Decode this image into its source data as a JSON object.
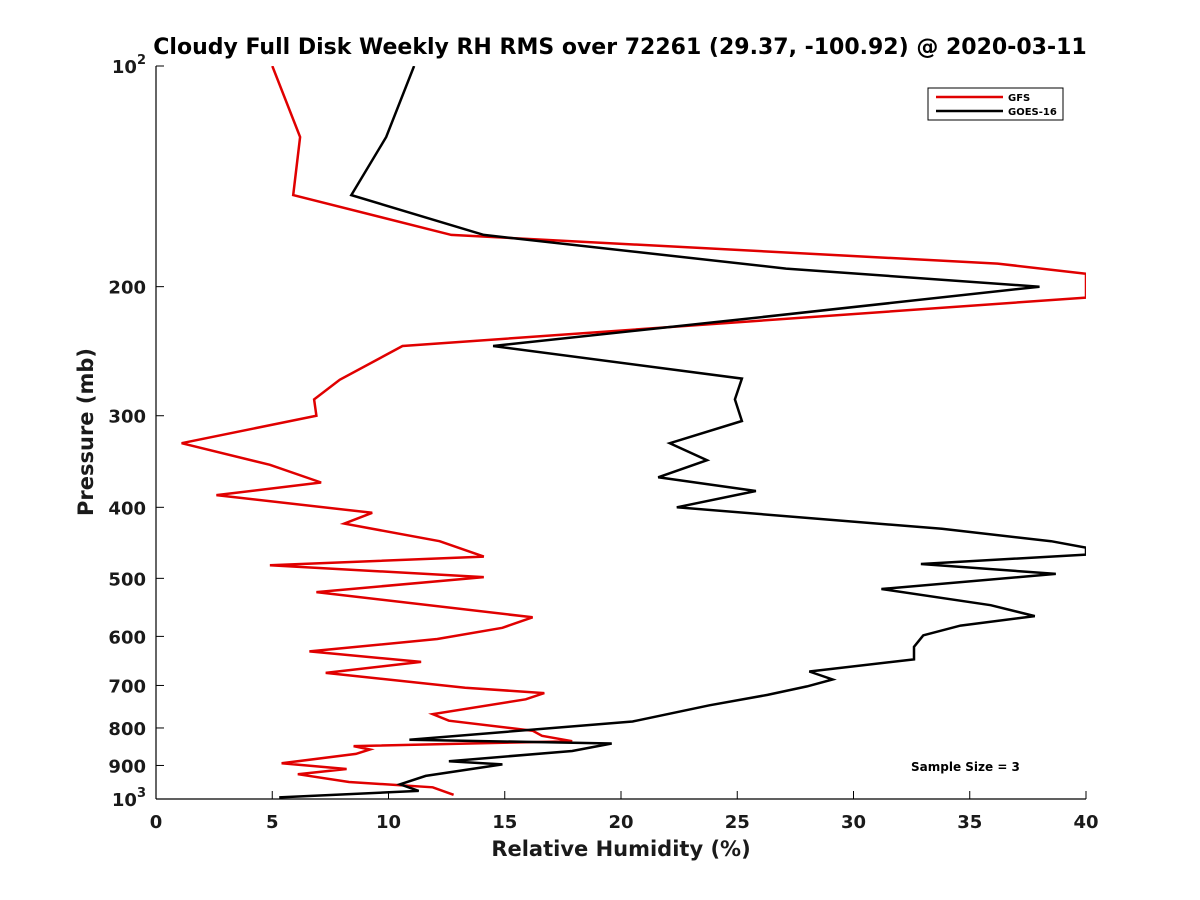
{
  "chart_data": {
    "type": "line",
    "title": "Cloudy Full Disk Weekly RH RMS over 72261 (29.37, -100.92) @ 2020-03-11",
    "xlabel": "Relative Humidity (%)",
    "ylabel": "Pressure (mb)",
    "xlim": [
      0,
      40
    ],
    "ylim": [
      100,
      1000
    ],
    "yscale": "log",
    "y_reversed": true,
    "x_ticks": [
      0,
      5,
      10,
      15,
      20,
      25,
      30,
      35,
      40
    ],
    "x_tick_labels": [
      "0",
      "5",
      "10",
      "15",
      "20",
      "25",
      "30",
      "35",
      "40"
    ],
    "y_ticks": [
      100,
      200,
      300,
      400,
      500,
      600,
      700,
      800,
      900,
      1000
    ],
    "y_tick_labels": [
      "10^2",
      "200",
      "300",
      "400",
      "500",
      "600",
      "700",
      "800",
      "900",
      "10^3"
    ],
    "legend_position": "top-right",
    "annotation": "Sample Size = 3",
    "series": [
      {
        "name": "GFS",
        "color": "#e00000",
        "points": [
          [
            5.0,
            100
          ],
          [
            6.2,
            125
          ],
          [
            5.9,
            150
          ],
          [
            12.7,
            170
          ],
          [
            36.2,
            186
          ],
          [
            40.0,
            192
          ],
          [
            40.0,
            207
          ],
          [
            10.6,
            241
          ],
          [
            7.9,
            268
          ],
          [
            6.8,
            285
          ],
          [
            6.9,
            300
          ],
          [
            1.1,
            327
          ],
          [
            4.9,
            350
          ],
          [
            7.1,
            370
          ],
          [
            2.6,
            385
          ],
          [
            9.3,
            407
          ],
          [
            8.1,
            421
          ],
          [
            12.2,
            445
          ],
          [
            14.1,
            467
          ],
          [
            4.9,
            480
          ],
          [
            14.1,
            498
          ],
          [
            6.9,
            522
          ],
          [
            16.2,
            565
          ],
          [
            14.9,
            584
          ],
          [
            12.1,
            605
          ],
          [
            6.6,
            629
          ],
          [
            11.4,
            650
          ],
          [
            7.3,
            673
          ],
          [
            13.3,
            705
          ],
          [
            16.7,
            717
          ],
          [
            15.9,
            731
          ],
          [
            11.9,
            766
          ],
          [
            12.6,
            782
          ],
          [
            16.2,
            807
          ],
          [
            16.6,
            820
          ],
          [
            17.9,
            834
          ],
          [
            8.5,
            847
          ],
          [
            9.2,
            856
          ],
          [
            8.6,
            868
          ],
          [
            5.4,
            894
          ],
          [
            8.2,
            910
          ],
          [
            6.1,
            925
          ],
          [
            8.3,
            948
          ],
          [
            11.9,
            964
          ],
          [
            12.8,
            987
          ]
        ]
      },
      {
        "name": "GOES-16",
        "color": "#000000",
        "points": [
          [
            11.1,
            100
          ],
          [
            9.9,
            125
          ],
          [
            8.4,
            150
          ],
          [
            14.1,
            170
          ],
          [
            27.1,
            189
          ],
          [
            38.0,
            200
          ],
          [
            24.4,
            223
          ],
          [
            14.5,
            241
          ],
          [
            25.2,
            267
          ],
          [
            24.9,
            285
          ],
          [
            25.2,
            305
          ],
          [
            22.1,
            327
          ],
          [
            23.7,
            345
          ],
          [
            21.6,
            364
          ],
          [
            25.8,
            380
          ],
          [
            22.4,
            400
          ],
          [
            33.8,
            428
          ],
          [
            38.5,
            445
          ],
          [
            40.0,
            454
          ],
          [
            40.0,
            464
          ],
          [
            32.9,
            478
          ],
          [
            38.7,
            493
          ],
          [
            31.2,
            517
          ],
          [
            35.9,
            544
          ],
          [
            37.8,
            563
          ],
          [
            34.6,
            580
          ],
          [
            33.0,
            598
          ],
          [
            32.6,
            620
          ],
          [
            32.6,
            645
          ],
          [
            28.1,
            670
          ],
          [
            29.1,
            687
          ],
          [
            28.0,
            702
          ],
          [
            26.3,
            721
          ],
          [
            23.8,
            745
          ],
          [
            20.5,
            784
          ],
          [
            10.9,
            830
          ],
          [
            19.6,
            840
          ],
          [
            17.9,
            860
          ],
          [
            12.6,
            888
          ],
          [
            14.9,
            897
          ],
          [
            11.6,
            930
          ],
          [
            10.5,
            955
          ],
          [
            11.3,
            975
          ],
          [
            5.3,
            995
          ]
        ]
      }
    ]
  }
}
